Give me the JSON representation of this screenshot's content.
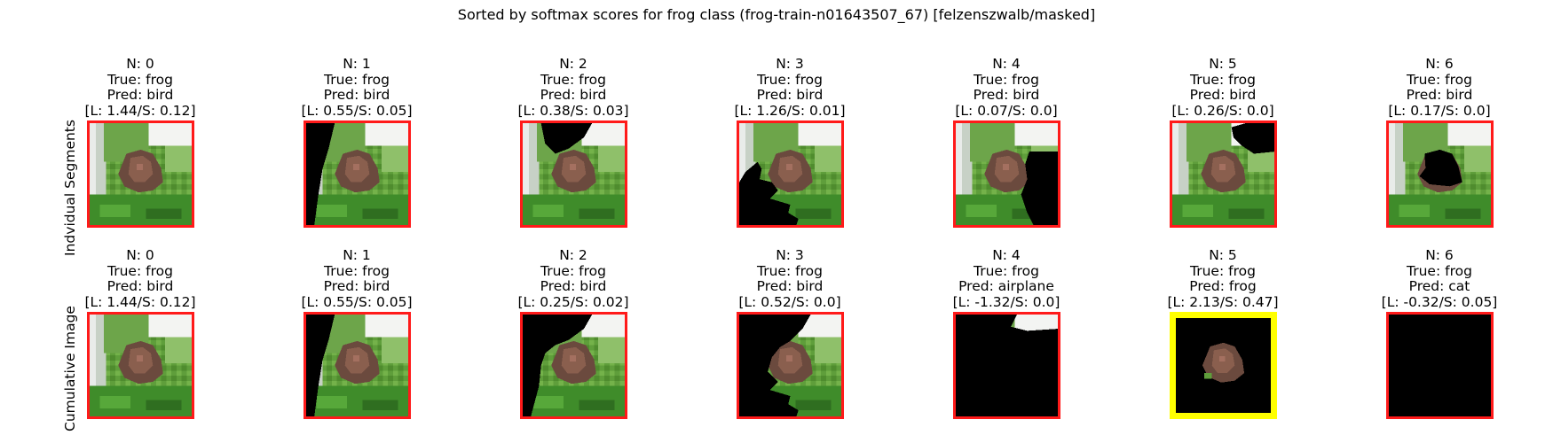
{
  "chart_data": {
    "type": "image-grid",
    "title": "Sorted by softmax scores for frog class (frog-train-n01643507_67) [felzenszwalb/masked]",
    "colors": {
      "frame": "#ff1a1a",
      "highlight": "#ffff00",
      "mask": "#000000"
    },
    "rows": [
      {
        "label": "Indvidual Segments",
        "panels": [
          {
            "n": "N: 0",
            "true": "True: frog",
            "pred": "Pred: bird",
            "score": "[L: 1.44/S: 0.12]",
            "mask": "none"
          },
          {
            "n": "N: 1",
            "true": "True: frog",
            "pred": "Pred: bird",
            "score": "[L: 0.55/S: 0.05]",
            "mask": "left-strip"
          },
          {
            "n": "N: 2",
            "true": "True: frog",
            "pred": "Pred: bird",
            "score": "[L: 0.38/S: 0.03]",
            "mask": "top-blob"
          },
          {
            "n": "N: 3",
            "true": "True: frog",
            "pred": "Pred: bird",
            "score": "[L: 1.26/S: 0.01]",
            "mask": "bottom-left"
          },
          {
            "n": "N: 4",
            "true": "True: frog",
            "pred": "Pred: bird",
            "score": "[L: 0.07/S: 0.0]",
            "mask": "right-mid"
          },
          {
            "n": "N: 5",
            "true": "True: frog",
            "pred": "Pred: bird",
            "score": "[L: 0.26/S: 0.0]",
            "mask": "top-right"
          },
          {
            "n": "N: 6",
            "true": "True: frog",
            "pred": "Pred: bird",
            "score": "[L: 0.17/S: 0.0]",
            "mask": "center-blob"
          }
        ]
      },
      {
        "label": "Cumulative Image",
        "panels": [
          {
            "n": "N: 0",
            "true": "True: frog",
            "pred": "Pred: bird",
            "score": "[L: 1.44/S: 0.12]",
            "mask": "none"
          },
          {
            "n": "N: 1",
            "true": "True: frog",
            "pred": "Pred: bird",
            "score": "[L: 0.55/S: 0.05]",
            "mask": "cum1"
          },
          {
            "n": "N: 2",
            "true": "True: frog",
            "pred": "Pred: bird",
            "score": "[L: 0.25/S: 0.02]",
            "mask": "cum2"
          },
          {
            "n": "N: 3",
            "true": "True: frog",
            "pred": "Pred: bird",
            "score": "[L: 0.52/S: 0.0]",
            "mask": "cum3"
          },
          {
            "n": "N: 4",
            "true": "True: frog",
            "pred": "Pred: airplane",
            "score": "[L: -1.32/S: 0.0]",
            "mask": "cum4"
          },
          {
            "n": "N: 5",
            "true": "True: frog",
            "pred": "Pred: frog",
            "score": "[L: 2.13/S: 0.47]",
            "mask": "cum5",
            "highlight": true
          },
          {
            "n": "N: 6",
            "true": "True: frog",
            "pred": "Pred: cat",
            "score": "[L: -0.32/S: 0.05]",
            "mask": "all"
          }
        ]
      }
    ]
  }
}
